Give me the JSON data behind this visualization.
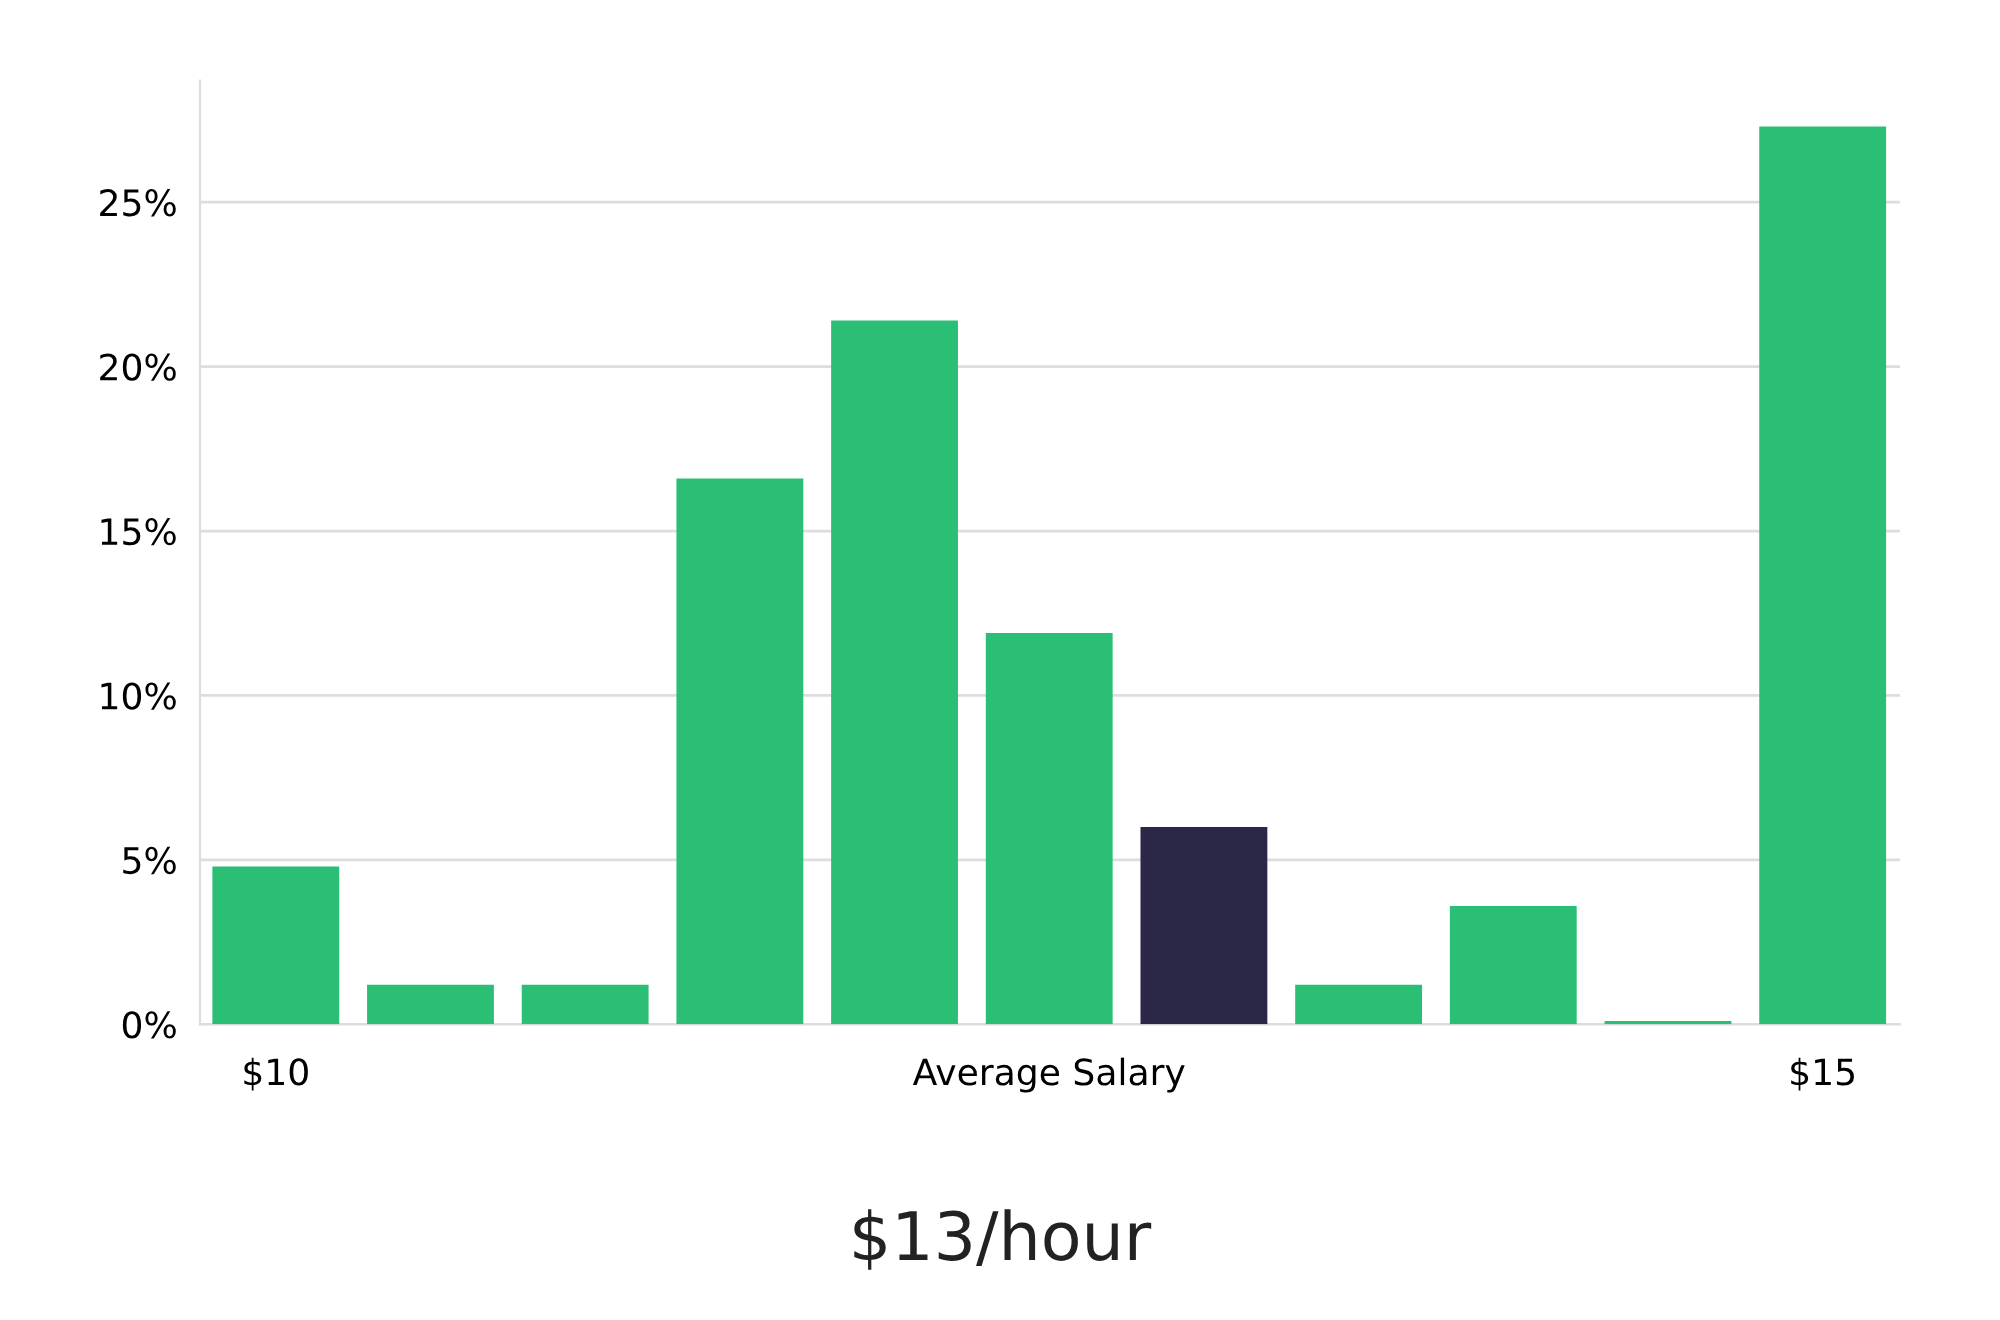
{
  "chart_data": {
    "type": "bar",
    "title": "$13/hour",
    "categories": [
      "$10",
      null,
      null,
      null,
      null,
      "Average Salary",
      null,
      null,
      null,
      null,
      "$15"
    ],
    "values": [
      4.8,
      1.2,
      1.2,
      16.6,
      21.4,
      11.9,
      6.0,
      1.2,
      3.6,
      0.1,
      27.3
    ],
    "colors": [
      "#2bbf76",
      "#2bbf76",
      "#2bbf76",
      "#2bbf76",
      "#2bbf76",
      "#2bbf76",
      "#2a2747",
      "#2bbf76",
      "#2bbf76",
      "#2bbf76",
      "#2bbf76"
    ],
    "ylim": [
      0,
      28.7
    ],
    "yticks": [
      {
        "value": 0,
        "label": "0%"
      },
      {
        "value": 5,
        "label": "5%"
      },
      {
        "value": 10,
        "label": "10%"
      },
      {
        "value": 15,
        "label": "15%"
      },
      {
        "value": 20,
        "label": "20%"
      },
      {
        "value": 25,
        "label": "25%"
      }
    ],
    "grid": "y",
    "legend": false
  }
}
